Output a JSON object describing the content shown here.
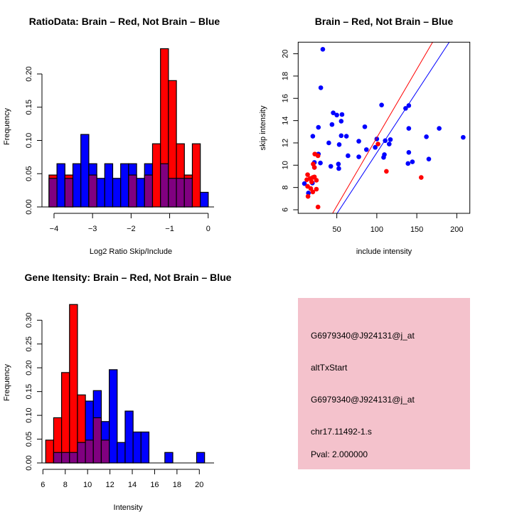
{
  "colors": {
    "red": "#ff0000",
    "blue": "#0000ff",
    "overlap": "#800080",
    "panel": "#f4c2cc",
    "pval": "#8b0000"
  },
  "chart_data": [
    {
      "type": "bar",
      "title": "RatioData: Brain – Red, Not Brain – Blue",
      "xlabel": "Log2 Ratio Skip/Include",
      "ylabel": "Frequency",
      "bin_start": -4.13,
      "bin_width": 0.2066,
      "xlim": [
        -4.3,
        0.2
      ],
      "ylim": [
        0,
        0.24
      ],
      "xticks": [
        -4,
        -3,
        -2,
        -1,
        0
      ],
      "xtick_labels": [
        "−4",
        "−3",
        "−2",
        "−1",
        "0"
      ],
      "yticks": [
        0,
        0.05,
        0.1,
        0.15,
        0.2
      ],
      "ytick_labels": [
        "0.00",
        "0.05",
        "0.10",
        "0.15",
        "0.20"
      ],
      "series": [
        {
          "name": "Brain",
          "color": "red",
          "values": [
            0.048,
            0,
            0.048,
            0,
            0,
            0.048,
            0,
            0,
            0,
            0,
            0.048,
            0,
            0.048,
            0.095,
            0.238,
            0.19,
            0.095,
            0.048,
            0.095,
            0
          ]
        },
        {
          "name": "Not Brain",
          "color": "blue",
          "values": [
            0.043,
            0.065,
            0.043,
            0.065,
            0.109,
            0.065,
            0.043,
            0.065,
            0.043,
            0.065,
            0.065,
            0.043,
            0.065,
            0,
            0.065,
            0.043,
            0.043,
            0.043,
            0,
            0.022
          ]
        }
      ]
    },
    {
      "type": "scatter",
      "title": "Brain – Red, Not Brain – Blue",
      "xlabel": "include intensity",
      "ylabel": "skip intensity",
      "xlim": [
        1.7,
        216.3
      ],
      "ylim": [
        5.68,
        21.04
      ],
      "xticks": [
        50,
        100,
        150,
        200
      ],
      "xtick_labels": [
        "50",
        "100",
        "150",
        "200"
      ],
      "yticks": [
        6,
        8,
        10,
        12,
        14,
        16,
        18,
        20
      ],
      "ytick_labels": [
        "6",
        "8",
        "10",
        "12",
        "14",
        "16",
        "18",
        "20"
      ],
      "series": [
        {
          "name": "Not Brain",
          "color": "blue",
          "points": [
            [
              32.5,
              20.4
            ],
            [
              30,
              16.95
            ],
            [
              106,
              15.4
            ],
            [
              136,
              15.1
            ],
            [
              140,
              15.35
            ],
            [
              45.5,
              14.7
            ],
            [
              50,
              14.5
            ],
            [
              56.5,
              14.55
            ],
            [
              55.5,
              13.95
            ],
            [
              44,
              13.65
            ],
            [
              27,
              13.4
            ],
            [
              85,
              13.45
            ],
            [
              140,
              13.3
            ],
            [
              178,
              13.3
            ],
            [
              20,
              12.6
            ],
            [
              55.5,
              12.65
            ],
            [
              62,
              12.6
            ],
            [
              40,
              12
            ],
            [
              77.5,
              12.15
            ],
            [
              100,
              12.35
            ],
            [
              110.5,
              12.2
            ],
            [
              117,
              12.3
            ],
            [
              53,
              11.85
            ],
            [
              115.5,
              11.9
            ],
            [
              162,
              12.55
            ],
            [
              208,
              12.5
            ],
            [
              87,
              11.4
            ],
            [
              98,
              11.6
            ],
            [
              27,
              11.0
            ],
            [
              64,
              10.85
            ],
            [
              77.5,
              10.75
            ],
            [
              109.5,
              10.95
            ],
            [
              108.5,
              10.7
            ],
            [
              140,
              11.15
            ],
            [
              29.5,
              10.2
            ],
            [
              22,
              10.25
            ],
            [
              22,
              9.8
            ],
            [
              42.5,
              9.9
            ],
            [
              52,
              10.1
            ],
            [
              52.5,
              9.7
            ],
            [
              139,
              10.15
            ],
            [
              144.5,
              10.3
            ],
            [
              165,
              10.55
            ],
            [
              9.5,
              8.35
            ],
            [
              19.5,
              8.4
            ],
            [
              14.5,
              7.5
            ]
          ]
        },
        {
          "name": "Brain",
          "color": "red",
          "points": [
            [
              101.5,
              11.9
            ],
            [
              112,
              9.45
            ],
            [
              155.5,
              8.9
            ],
            [
              26.5,
              6.25
            ],
            [
              22.5,
              11
            ],
            [
              26.5,
              10.85
            ],
            [
              20.5,
              10.1
            ],
            [
              22,
              9.8
            ],
            [
              13.5,
              9.15
            ],
            [
              12.5,
              8.7
            ],
            [
              16.5,
              8.8
            ],
            [
              20,
              8.9
            ],
            [
              22,
              8.95
            ],
            [
              24.5,
              8.65
            ],
            [
              18.5,
              8.5
            ],
            [
              13.5,
              8.1
            ],
            [
              17.5,
              7.9
            ],
            [
              20,
              7.6
            ],
            [
              24.5,
              7.85
            ],
            [
              14,
              7.2
            ]
          ]
        }
      ],
      "lines": [
        {
          "color": "red",
          "slope": 0.1228,
          "intercept": 0.19
        },
        {
          "color": "blue",
          "slope": 0.1096,
          "intercept": 0.157
        }
      ]
    },
    {
      "type": "bar",
      "title": "Gene Itensity: Brain – Red, Not Brain – Blue",
      "xlabel": "Intensity",
      "ylabel": "Frequency",
      "bin_start": 6.25,
      "bin_width": 0.711,
      "xlim": [
        5.8,
        21
      ],
      "ylim": [
        0,
        0.333
      ],
      "xticks": [
        6,
        8,
        10,
        12,
        14,
        16,
        18,
        20
      ],
      "xtick_labels": [
        "6",
        "8",
        "10",
        "12",
        "14",
        "16",
        "18",
        "20"
      ],
      "yticks": [
        0,
        0.05,
        0.1,
        0.15,
        0.2,
        0.25,
        0.3
      ],
      "ytick_labels": [
        "0.00",
        "0.05",
        "0.10",
        "0.15",
        "0.20",
        "0.25",
        "0.30"
      ],
      "series": [
        {
          "name": "Brain",
          "color": "red",
          "values": [
            0.048,
            0.095,
            0.19,
            0.333,
            0.143,
            0.048,
            0.095,
            0.048,
            0,
            0,
            0,
            0,
            0,
            0,
            0,
            0,
            0,
            0,
            0,
            0
          ]
        },
        {
          "name": "Not Brain",
          "color": "blue",
          "values": [
            0,
            0.022,
            0.022,
            0.022,
            0.043,
            0.13,
            0.152,
            0.087,
            0.196,
            0.043,
            0.109,
            0.065,
            0.065,
            0,
            0,
            0.022,
            0,
            0,
            0,
            0.022
          ]
        }
      ]
    }
  ],
  "info_panel": {
    "lines": [
      "G6979340@J924131@j_at",
      "altTxStart",
      "G6979340@J924131@j_at",
      "chr17.11492-1.s"
    ],
    "pval": "Pval: 2.000000"
  }
}
